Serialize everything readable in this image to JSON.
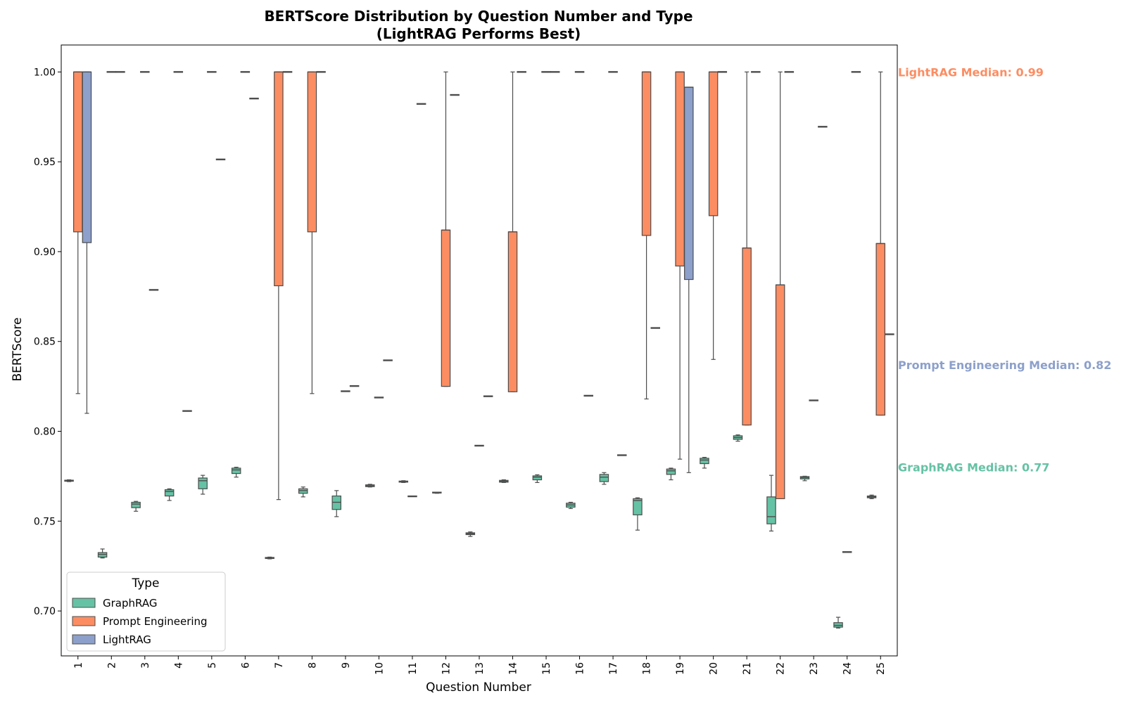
{
  "chart_data": {
    "type": "box",
    "title": "BERTScore Distribution by Question Number and Type",
    "subtitle": "(LightRAG Performs Best)",
    "xlabel": "Question Number",
    "ylabel": "BERTScore",
    "ylim": [
      0.675,
      1.015
    ],
    "yticks": [
      "0.70",
      "0.75",
      "0.80",
      "0.85",
      "0.90",
      "0.95",
      "1.00"
    ],
    "categories": [
      "1",
      "2",
      "3",
      "4",
      "5",
      "6",
      "7",
      "8",
      "9",
      "10",
      "11",
      "12",
      "13",
      "14",
      "15",
      "16",
      "17",
      "18",
      "19",
      "20",
      "21",
      "22",
      "23",
      "24",
      "25"
    ],
    "legend": {
      "title": "Type",
      "position": "lower-left"
    },
    "series": [
      {
        "name": "GraphRAG",
        "color": "#66c2a5",
        "boxes": [
          {
            "q": 1,
            "min": 0.772,
            "q1": 0.7722,
            "median": 0.7725,
            "q3": 0.7728,
            "max": 0.773
          },
          {
            "q": 2,
            "min": 0.7295,
            "q1": 0.73,
            "median": 0.7315,
            "q3": 0.7325,
            "max": 0.7345
          },
          {
            "q": 3,
            "min": 0.7555,
            "q1": 0.7575,
            "median": 0.7595,
            "q3": 0.7605,
            "max": 0.761
          },
          {
            "q": 4,
            "min": 0.7615,
            "q1": 0.764,
            "median": 0.7665,
            "q3": 0.7675,
            "max": 0.768
          },
          {
            "q": 5,
            "min": 0.765,
            "q1": 0.768,
            "median": 0.7725,
            "q3": 0.774,
            "max": 0.7755
          },
          {
            "q": 6,
            "min": 0.7745,
            "q1": 0.7765,
            "median": 0.7785,
            "q3": 0.7795,
            "max": 0.78
          },
          {
            "q": 7,
            "min": 0.729,
            "q1": 0.7292,
            "median": 0.7295,
            "q3": 0.7298,
            "max": 0.73
          },
          {
            "q": 8,
            "min": 0.7635,
            "q1": 0.7655,
            "median": 0.767,
            "q3": 0.768,
            "max": 0.769
          },
          {
            "q": 9,
            "min": 0.7525,
            "q1": 0.7565,
            "median": 0.7605,
            "q3": 0.764,
            "max": 0.767
          },
          {
            "q": 10,
            "min": 0.769,
            "q1": 0.7692,
            "median": 0.7697,
            "q3": 0.7702,
            "max": 0.7705
          },
          {
            "q": 11,
            "min": 0.7715,
            "q1": 0.7717,
            "median": 0.772,
            "q3": 0.7723,
            "max": 0.7725
          },
          {
            "q": 12,
            "min": 0.7655,
            "q1": 0.7655,
            "median": 0.7657,
            "q3": 0.7659,
            "max": 0.766
          },
          {
            "q": 13,
            "min": 0.7415,
            "q1": 0.7425,
            "median": 0.743,
            "q3": 0.7435,
            "max": 0.744
          },
          {
            "q": 14,
            "min": 0.7715,
            "q1": 0.7717,
            "median": 0.7722,
            "q3": 0.7727,
            "max": 0.773
          },
          {
            "q": 15,
            "min": 0.7715,
            "q1": 0.773,
            "median": 0.7745,
            "q3": 0.7752,
            "max": 0.7758
          },
          {
            "q": 16,
            "min": 0.757,
            "q1": 0.7578,
            "median": 0.759,
            "q3": 0.76,
            "max": 0.7605
          },
          {
            "q": 17,
            "min": 0.7705,
            "q1": 0.772,
            "median": 0.7745,
            "q3": 0.776,
            "max": 0.777
          },
          {
            "q": 18,
            "min": 0.745,
            "q1": 0.7535,
            "median": 0.7615,
            "q3": 0.7625,
            "max": 0.763
          },
          {
            "q": 19,
            "min": 0.773,
            "q1": 0.776,
            "median": 0.778,
            "q3": 0.779,
            "max": 0.7795
          },
          {
            "q": 20,
            "min": 0.7795,
            "q1": 0.782,
            "median": 0.784,
            "q3": 0.785,
            "max": 0.7855
          },
          {
            "q": 21,
            "min": 0.7945,
            "q1": 0.7955,
            "median": 0.7965,
            "q3": 0.7975,
            "max": 0.798
          },
          {
            "q": 22,
            "min": 0.7445,
            "q1": 0.7485,
            "median": 0.7525,
            "q3": 0.7635,
            "max": 0.7755
          },
          {
            "q": 23,
            "min": 0.7725,
            "q1": 0.7735,
            "median": 0.7742,
            "q3": 0.7748,
            "max": 0.775
          },
          {
            "q": 24,
            "min": 0.6905,
            "q1": 0.691,
            "median": 0.692,
            "q3": 0.6935,
            "max": 0.6965
          },
          {
            "q": 25,
            "min": 0.7625,
            "q1": 0.763,
            "median": 0.7635,
            "q3": 0.764,
            "max": 0.7645
          }
        ]
      },
      {
        "name": "Prompt Engineering",
        "color": "#fc8d62",
        "boxes": [
          {
            "q": 1,
            "min": 0.821,
            "q1": 0.911,
            "median": 1.0,
            "q3": 1.0,
            "max": 1.0
          },
          {
            "q": 2,
            "min": 1.0,
            "q1": 1.0,
            "median": 1.0,
            "q3": 1.0,
            "max": 1.0
          },
          {
            "q": 3,
            "min": 1.0,
            "q1": 1.0,
            "median": 1.0,
            "q3": 1.0,
            "max": 1.0
          },
          {
            "q": 4,
            "min": 1.0,
            "q1": 1.0,
            "median": 1.0,
            "q3": 1.0,
            "max": 1.0
          },
          {
            "q": 5,
            "min": 1.0,
            "q1": 1.0,
            "median": 1.0,
            "q3": 1.0,
            "max": 1.0
          },
          {
            "q": 6,
            "min": 1.0,
            "q1": 1.0,
            "median": 1.0,
            "q3": 1.0,
            "max": 1.0
          },
          {
            "q": 7,
            "min": 0.762,
            "q1": 0.881,
            "median": 1.0,
            "q3": 1.0,
            "max": 1.0
          },
          {
            "q": 8,
            "min": 0.821,
            "q1": 0.911,
            "median": 1.0,
            "q3": 1.0,
            "max": 1.0
          },
          {
            "q": 9,
            "min": 0.8223,
            "q1": 0.8223,
            "median": 0.8223,
            "q3": 0.8223,
            "max": 0.8223
          },
          {
            "q": 10,
            "min": 0.8188,
            "q1": 0.8188,
            "median": 0.8188,
            "q3": 0.8188,
            "max": 0.8188
          },
          {
            "q": 11,
            "min": 0.7638,
            "q1": 0.7638,
            "median": 0.7638,
            "q3": 0.7638,
            "max": 0.7638
          },
          {
            "q": 12,
            "min": 0.825,
            "q1": 0.825,
            "median": 0.912,
            "q3": 0.912,
            "max": 1.0
          },
          {
            "q": 13,
            "min": 0.792,
            "q1": 0.792,
            "median": 0.792,
            "q3": 0.792,
            "max": 0.792
          },
          {
            "q": 14,
            "min": 0.822,
            "q1": 0.822,
            "median": 0.911,
            "q3": 0.911,
            "max": 1.0
          },
          {
            "q": 15,
            "min": 1.0,
            "q1": 1.0,
            "median": 1.0,
            "q3": 1.0,
            "max": 1.0
          },
          {
            "q": 16,
            "min": 1.0,
            "q1": 1.0,
            "median": 1.0,
            "q3": 1.0,
            "max": 1.0
          },
          {
            "q": 17,
            "min": 1.0,
            "q1": 1.0,
            "median": 1.0,
            "q3": 1.0,
            "max": 1.0
          },
          {
            "q": 18,
            "min": 0.818,
            "q1": 0.909,
            "median": 1.0,
            "q3": 1.0,
            "max": 1.0
          },
          {
            "q": 19,
            "min": 0.7845,
            "q1": 0.892,
            "median": 1.0,
            "q3": 1.0,
            "max": 1.0
          },
          {
            "q": 20,
            "min": 0.84,
            "q1": 0.92,
            "median": 1.0,
            "q3": 1.0,
            "max": 1.0
          },
          {
            "q": 21,
            "min": 0.8035,
            "q1": 0.8035,
            "median": 0.902,
            "q3": 0.902,
            "max": 1.0
          },
          {
            "q": 22,
            "min": 0.7625,
            "q1": 0.7625,
            "median": 0.8815,
            "q3": 0.8815,
            "max": 1.0
          },
          {
            "q": 23,
            "min": 0.8172,
            "q1": 0.8172,
            "median": 0.8172,
            "q3": 0.8172,
            "max": 0.8172
          },
          {
            "q": 24,
            "min": 0.7328,
            "q1": 0.7328,
            "median": 0.7328,
            "q3": 0.7328,
            "max": 0.7328
          },
          {
            "q": 25,
            "min": 0.809,
            "q1": 0.809,
            "median": 0.9045,
            "q3": 0.9045,
            "max": 1.0
          }
        ]
      },
      {
        "name": "LightRAG",
        "color": "#8da0cb",
        "boxes": [
          {
            "q": 1,
            "min": 0.81,
            "q1": 0.905,
            "median": 1.0,
            "q3": 1.0,
            "max": 1.0
          },
          {
            "q": 2,
            "min": 1.0,
            "q1": 1.0,
            "median": 1.0,
            "q3": 1.0,
            "max": 1.0
          },
          {
            "q": 3,
            "min": 0.8787,
            "q1": 0.8787,
            "median": 0.8787,
            "q3": 0.8787,
            "max": 0.8787
          },
          {
            "q": 4,
            "min": 0.8113,
            "q1": 0.8113,
            "median": 0.8113,
            "q3": 0.8113,
            "max": 0.8113
          },
          {
            "q": 5,
            "min": 0.9513,
            "q1": 0.9513,
            "median": 0.9513,
            "q3": 0.9513,
            "max": 0.9513
          },
          {
            "q": 6,
            "min": 0.9852,
            "q1": 0.9852,
            "median": 0.9852,
            "q3": 0.9852,
            "max": 0.9852
          },
          {
            "q": 7,
            "min": 1.0,
            "q1": 1.0,
            "median": 1.0,
            "q3": 1.0,
            "max": 1.0
          },
          {
            "q": 8,
            "min": 1.0,
            "q1": 1.0,
            "median": 1.0,
            "q3": 1.0,
            "max": 1.0
          },
          {
            "q": 9,
            "min": 0.8252,
            "q1": 0.8252,
            "median": 0.8252,
            "q3": 0.8252,
            "max": 0.8252
          },
          {
            "q": 10,
            "min": 0.8395,
            "q1": 0.8395,
            "median": 0.8395,
            "q3": 0.8395,
            "max": 0.8395
          },
          {
            "q": 11,
            "min": 0.9822,
            "q1": 0.9822,
            "median": 0.9822,
            "q3": 0.9822,
            "max": 0.9822
          },
          {
            "q": 12,
            "min": 0.9872,
            "q1": 0.9872,
            "median": 0.9872,
            "q3": 0.9872,
            "max": 0.9872
          },
          {
            "q": 13,
            "min": 0.8195,
            "q1": 0.8195,
            "median": 0.8195,
            "q3": 0.8195,
            "max": 0.8195
          },
          {
            "q": 14,
            "min": 1.0,
            "q1": 1.0,
            "median": 1.0,
            "q3": 1.0,
            "max": 1.0
          },
          {
            "q": 15,
            "min": 1.0,
            "q1": 1.0,
            "median": 1.0,
            "q3": 1.0,
            "max": 1.0
          },
          {
            "q": 16,
            "min": 0.8198,
            "q1": 0.8198,
            "median": 0.8198,
            "q3": 0.8198,
            "max": 0.8198
          },
          {
            "q": 17,
            "min": 0.7867,
            "q1": 0.7867,
            "median": 0.7867,
            "q3": 0.7867,
            "max": 0.7867
          },
          {
            "q": 18,
            "min": 0.8575,
            "q1": 0.8575,
            "median": 0.8575,
            "q3": 0.8575,
            "max": 0.8575
          },
          {
            "q": 19,
            "min": 0.777,
            "q1": 0.8845,
            "median": 0.9915,
            "q3": 0.9915,
            "max": 0.9915
          },
          {
            "q": 20,
            "min": 1.0,
            "q1": 1.0,
            "median": 1.0,
            "q3": 1.0,
            "max": 1.0
          },
          {
            "q": 21,
            "min": 1.0,
            "q1": 1.0,
            "median": 1.0,
            "q3": 1.0,
            "max": 1.0
          },
          {
            "q": 22,
            "min": 1.0,
            "q1": 1.0,
            "median": 1.0,
            "q3": 1.0,
            "max": 1.0
          },
          {
            "q": 23,
            "min": 0.9695,
            "q1": 0.9695,
            "median": 0.9695,
            "q3": 0.9695,
            "max": 0.9695
          },
          {
            "q": 24,
            "min": 1.0,
            "q1": 1.0,
            "median": 1.0,
            "q3": 1.0,
            "max": 1.0
          },
          {
            "q": 25,
            "min": 0.854,
            "q1": 0.854,
            "median": 0.854,
            "q3": 0.854,
            "max": 0.854
          }
        ]
      }
    ],
    "annotations": [
      {
        "text": "LightRAG Median: 0.99",
        "y": 1.0,
        "color": "#fc8d62"
      },
      {
        "text": "Prompt Engineering Median: 0.82",
        "y": 0.837,
        "color": "#8da0cb"
      },
      {
        "text": "GraphRAG Median: 0.77",
        "y": 0.78,
        "color": "#66c2a5"
      }
    ]
  }
}
